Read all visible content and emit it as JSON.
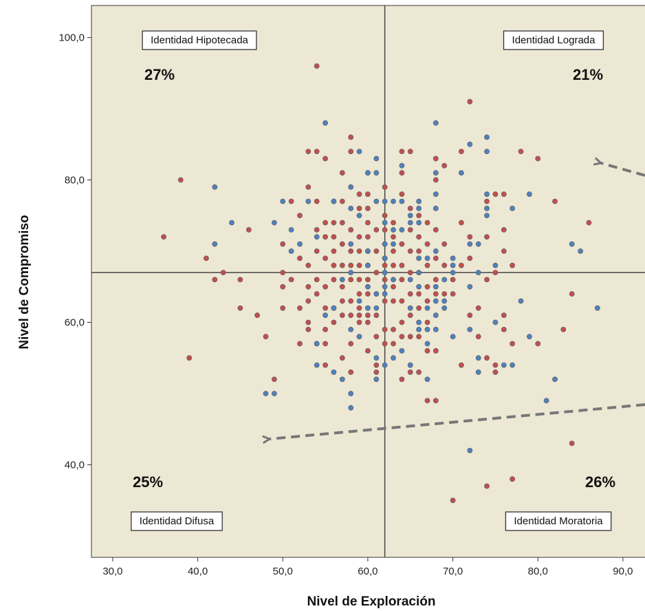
{
  "chart_data": {
    "type": "scatter",
    "xlabel": "Nivel de Exploración",
    "ylabel": "Nivel de Compromiso",
    "xlim": [
      27.5,
      93.0
    ],
    "ylim": [
      27.0,
      104.5
    ],
    "x_ticks": [
      30,
      40,
      50,
      60,
      70,
      80,
      90
    ],
    "x_tick_labels": [
      "30,0",
      "40,0",
      "50,0",
      "60,0",
      "70,0",
      "80,0",
      "90,0"
    ],
    "y_ticks": [
      40,
      60,
      80,
      100
    ],
    "y_tick_labels": [
      "40,0",
      "60,0",
      "80,0",
      "100,0"
    ],
    "divider_x": 62,
    "divider_y": 67,
    "background_color": "#ede8d4",
    "grid": false,
    "quadrants": [
      {
        "label": "Identidad Hipotecada",
        "percent": "27%"
      },
      {
        "label": "Identidad Lograda",
        "percent": "21%"
      },
      {
        "label": "Identidad Difusa",
        "percent": "25%"
      },
      {
        "label": "Identidad Moratoria",
        "percent": "26%"
      }
    ],
    "series": [
      {
        "color": "#c0504d",
        "points": [
          [
            54,
            96
          ],
          [
            72,
            91
          ],
          [
            38,
            80
          ],
          [
            36,
            72
          ],
          [
            39,
            55
          ],
          [
            47,
            61
          ],
          [
            46,
            73
          ],
          [
            41,
            69
          ],
          [
            42,
            66
          ],
          [
            43,
            67
          ],
          [
            45,
            66
          ],
          [
            45,
            62
          ],
          [
            48,
            58
          ],
          [
            49,
            52
          ],
          [
            50,
            71
          ],
          [
            50,
            67
          ],
          [
            50,
            65
          ],
          [
            50,
            62
          ],
          [
            51,
            77
          ],
          [
            51,
            66
          ],
          [
            52,
            75
          ],
          [
            52,
            69
          ],
          [
            52,
            62
          ],
          [
            52,
            57
          ],
          [
            53,
            84
          ],
          [
            53,
            79
          ],
          [
            53,
            68
          ],
          [
            53,
            65
          ],
          [
            53,
            63
          ],
          [
            53,
            60
          ],
          [
            53,
            59
          ],
          [
            54,
            84
          ],
          [
            54,
            77
          ],
          [
            54,
            73
          ],
          [
            54,
            70
          ],
          [
            54,
            66
          ],
          [
            54,
            64
          ],
          [
            54,
            57
          ],
          [
            55,
            83
          ],
          [
            55,
            74
          ],
          [
            55,
            72
          ],
          [
            55,
            69
          ],
          [
            55,
            65
          ],
          [
            55,
            62
          ],
          [
            55,
            59
          ],
          [
            55,
            57
          ],
          [
            55,
            54
          ],
          [
            56,
            77
          ],
          [
            56,
            74
          ],
          [
            56,
            72
          ],
          [
            56,
            70
          ],
          [
            56,
            68
          ],
          [
            56,
            66
          ],
          [
            56,
            62
          ],
          [
            56,
            60
          ],
          [
            57,
            81
          ],
          [
            57,
            77
          ],
          [
            57,
            74
          ],
          [
            57,
            71
          ],
          [
            57,
            68
          ],
          [
            57,
            65
          ],
          [
            57,
            63
          ],
          [
            57,
            61
          ],
          [
            57,
            55
          ],
          [
            58,
            86
          ],
          [
            58,
            84
          ],
          [
            58,
            73
          ],
          [
            58,
            70
          ],
          [
            58,
            68
          ],
          [
            58,
            66
          ],
          [
            58,
            63
          ],
          [
            58,
            61
          ],
          [
            58,
            57
          ],
          [
            58,
            53
          ],
          [
            59,
            78
          ],
          [
            59,
            76
          ],
          [
            59,
            72
          ],
          [
            59,
            70
          ],
          [
            59,
            68
          ],
          [
            59,
            66
          ],
          [
            59,
            64
          ],
          [
            59,
            62
          ],
          [
            59,
            61
          ],
          [
            59,
            60
          ],
          [
            60,
            81
          ],
          [
            60,
            78
          ],
          [
            60,
            76
          ],
          [
            60,
            74
          ],
          [
            60,
            72
          ],
          [
            60,
            70
          ],
          [
            60,
            68
          ],
          [
            60,
            66
          ],
          [
            60,
            64
          ],
          [
            60,
            62
          ],
          [
            60,
            61
          ],
          [
            60,
            60
          ],
          [
            60,
            56
          ],
          [
            61,
            73
          ],
          [
            61,
            70
          ],
          [
            61,
            67
          ],
          [
            61,
            64
          ],
          [
            61,
            61
          ],
          [
            61,
            58
          ],
          [
            61,
            54
          ],
          [
            61,
            53
          ],
          [
            62,
            79
          ],
          [
            62,
            75
          ],
          [
            62,
            73
          ],
          [
            62,
            71
          ],
          [
            62,
            69
          ],
          [
            62,
            68
          ],
          [
            62,
            66
          ],
          [
            62,
            63
          ],
          [
            62,
            59
          ],
          [
            62,
            57
          ],
          [
            63,
            74
          ],
          [
            63,
            72
          ],
          [
            63,
            70
          ],
          [
            63,
            68
          ],
          [
            63,
            65
          ],
          [
            63,
            63
          ],
          [
            63,
            59
          ],
          [
            63,
            57
          ],
          [
            64,
            84
          ],
          [
            64,
            81
          ],
          [
            64,
            78
          ],
          [
            64,
            71
          ],
          [
            64,
            68
          ],
          [
            64,
            66
          ],
          [
            64,
            63
          ],
          [
            64,
            60
          ],
          [
            64,
            58
          ],
          [
            64,
            52
          ],
          [
            65,
            84
          ],
          [
            65,
            76
          ],
          [
            65,
            73
          ],
          [
            65,
            70
          ],
          [
            65,
            67
          ],
          [
            65,
            64
          ],
          [
            65,
            61
          ],
          [
            65,
            58
          ],
          [
            65,
            54
          ],
          [
            65,
            53
          ],
          [
            66,
            75
          ],
          [
            66,
            72
          ],
          [
            66,
            70
          ],
          [
            66,
            67
          ],
          [
            66,
            64
          ],
          [
            66,
            62
          ],
          [
            66,
            58
          ],
          [
            66,
            53
          ],
          [
            67,
            74
          ],
          [
            67,
            71
          ],
          [
            67,
            68
          ],
          [
            67,
            65
          ],
          [
            67,
            63
          ],
          [
            67,
            60
          ],
          [
            67,
            56
          ],
          [
            67,
            49
          ],
          [
            68,
            83
          ],
          [
            68,
            80
          ],
          [
            68,
            73
          ],
          [
            68,
            69
          ],
          [
            68,
            66
          ],
          [
            68,
            64
          ],
          [
            68,
            56
          ],
          [
            68,
            49
          ],
          [
            69,
            82
          ],
          [
            69,
            71
          ],
          [
            69,
            68
          ],
          [
            69,
            64
          ],
          [
            70,
            66
          ],
          [
            70,
            64
          ],
          [
            71,
            84
          ],
          [
            71,
            74
          ],
          [
            71,
            68
          ],
          [
            71,
            54
          ],
          [
            70,
            35
          ],
          [
            72,
            72
          ],
          [
            72,
            69
          ],
          [
            72,
            61
          ],
          [
            73,
            62
          ],
          [
            73,
            58
          ],
          [
            74,
            77
          ],
          [
            74,
            72
          ],
          [
            74,
            66
          ],
          [
            74,
            55
          ],
          [
            74,
            37
          ],
          [
            75,
            78
          ],
          [
            75,
            67
          ],
          [
            75,
            53
          ],
          [
            75,
            54
          ],
          [
            76,
            78
          ],
          [
            76,
            73
          ],
          [
            76,
            70
          ],
          [
            76,
            61
          ],
          [
            76,
            59
          ],
          [
            77,
            68
          ],
          [
            77,
            57
          ],
          [
            77,
            38
          ],
          [
            78,
            84
          ],
          [
            80,
            83
          ],
          [
            80,
            57
          ],
          [
            82,
            77
          ],
          [
            83,
            59
          ],
          [
            84,
            64
          ],
          [
            84,
            43
          ],
          [
            86,
            74
          ]
        ]
      },
      {
        "color": "#4f81bd",
        "points": [
          [
            42,
            79
          ],
          [
            42,
            71
          ],
          [
            44,
            74
          ],
          [
            48,
            50
          ],
          [
            49,
            74
          ],
          [
            49,
            50
          ],
          [
            50,
            77
          ],
          [
            51,
            70
          ],
          [
            51,
            73
          ],
          [
            52,
            71
          ],
          [
            53,
            77
          ],
          [
            54,
            72
          ],
          [
            54,
            57
          ],
          [
            54,
            54
          ],
          [
            55,
            88
          ],
          [
            55,
            61
          ],
          [
            56,
            77
          ],
          [
            56,
            62
          ],
          [
            56,
            53
          ],
          [
            57,
            66
          ],
          [
            57,
            52
          ],
          [
            58,
            79
          ],
          [
            58,
            76
          ],
          [
            58,
            71
          ],
          [
            58,
            67
          ],
          [
            58,
            59
          ],
          [
            58,
            50
          ],
          [
            58,
            48
          ],
          [
            59,
            84
          ],
          [
            59,
            75
          ],
          [
            59,
            63
          ],
          [
            59,
            58
          ],
          [
            60,
            81
          ],
          [
            60,
            70
          ],
          [
            60,
            68
          ],
          [
            60,
            65
          ],
          [
            60,
            62
          ],
          [
            61,
            83
          ],
          [
            61,
            81
          ],
          [
            61,
            77
          ],
          [
            61,
            64
          ],
          [
            61,
            62
          ],
          [
            61,
            55
          ],
          [
            61,
            52
          ],
          [
            62,
            77
          ],
          [
            62,
            74
          ],
          [
            62,
            71
          ],
          [
            62,
            69
          ],
          [
            62,
            67
          ],
          [
            62,
            65
          ],
          [
            62,
            64
          ],
          [
            62,
            54
          ],
          [
            63,
            77
          ],
          [
            63,
            73
          ],
          [
            63,
            71
          ],
          [
            63,
            66
          ],
          [
            63,
            55
          ],
          [
            64,
            82
          ],
          [
            64,
            77
          ],
          [
            64,
            73
          ],
          [
            64,
            56
          ],
          [
            65,
            75
          ],
          [
            65,
            74
          ],
          [
            65,
            66
          ],
          [
            65,
            62
          ],
          [
            65,
            54
          ],
          [
            66,
            77
          ],
          [
            66,
            76
          ],
          [
            66,
            74
          ],
          [
            66,
            69
          ],
          [
            66,
            67
          ],
          [
            66,
            65
          ],
          [
            66,
            60
          ],
          [
            66,
            59
          ],
          [
            67,
            69
          ],
          [
            67,
            62
          ],
          [
            67,
            59
          ],
          [
            67,
            57
          ],
          [
            67,
            52
          ],
          [
            68,
            88
          ],
          [
            68,
            81
          ],
          [
            68,
            78
          ],
          [
            68,
            76
          ],
          [
            68,
            70
          ],
          [
            68,
            65
          ],
          [
            68,
            63
          ],
          [
            68,
            61
          ],
          [
            68,
            59
          ],
          [
            69,
            66
          ],
          [
            69,
            63
          ],
          [
            69,
            62
          ],
          [
            70,
            69
          ],
          [
            70,
            68
          ],
          [
            70,
            67
          ],
          [
            70,
            58
          ],
          [
            71,
            81
          ],
          [
            72,
            85
          ],
          [
            72,
            71
          ],
          [
            72,
            65
          ],
          [
            72,
            59
          ],
          [
            72,
            42
          ],
          [
            73,
            71
          ],
          [
            73,
            67
          ],
          [
            73,
            55
          ],
          [
            73,
            53
          ],
          [
            74,
            86
          ],
          [
            74,
            84
          ],
          [
            74,
            78
          ],
          [
            74,
            76
          ],
          [
            74,
            75
          ],
          [
            75,
            68
          ],
          [
            75,
            60
          ],
          [
            76,
            54
          ],
          [
            77,
            54
          ],
          [
            77,
            76
          ],
          [
            78,
            63
          ],
          [
            79,
            78
          ],
          [
            79,
            58
          ],
          [
            81,
            49
          ],
          [
            82,
            52
          ],
          [
            84,
            71
          ],
          [
            85,
            70
          ],
          [
            87,
            62
          ]
        ]
      }
    ]
  }
}
